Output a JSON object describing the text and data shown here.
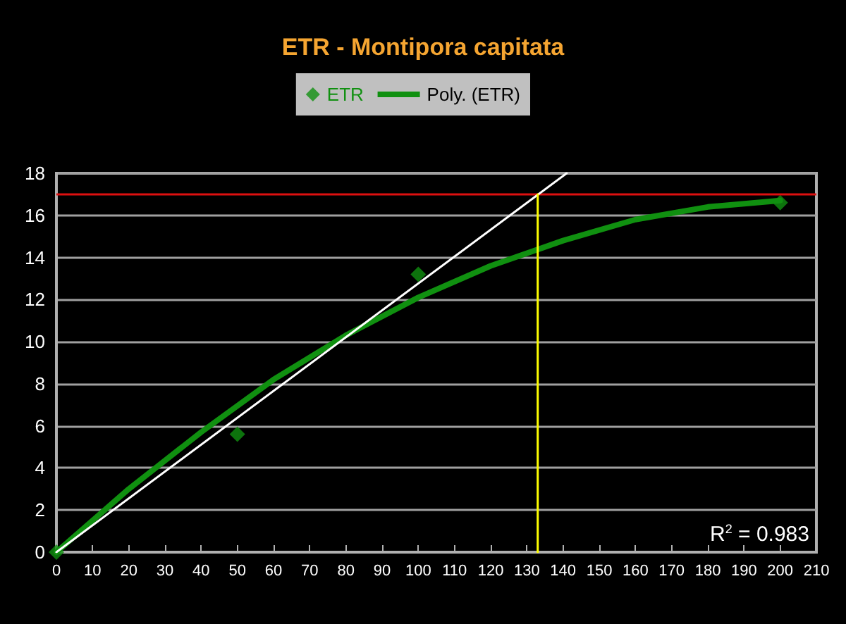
{
  "chart_data": {
    "type": "scatter",
    "title": "ETR - Montipora capitata",
    "series": [
      {
        "name": "ETR",
        "color": "#109010",
        "marker": "diamond",
        "x": [
          0,
          50,
          100,
          200
        ],
        "values": [
          0,
          5.6,
          13.2,
          16.6
        ]
      },
      {
        "name": "Poly. (ETR)",
        "type": "line",
        "color": "#109010",
        "marker": "none",
        "line_style": "solid",
        "x": [
          0,
          20,
          40,
          60,
          80,
          100,
          120,
          140,
          160,
          180,
          200
        ],
        "values": [
          0,
          3.0,
          5.7,
          8.2,
          10.3,
          12.1,
          13.6,
          14.8,
          15.8,
          16.4,
          16.7
        ]
      },
      {
        "type": "line",
        "color": "#ffffff",
        "marker": "none",
        "line_style": "solid",
        "x": [
          0,
          141
        ],
        "values": [
          0,
          18
        ]
      },
      {
        "type": "line",
        "color": "#ffff00",
        "marker": "none",
        "line_style": "solid",
        "x": [
          133,
          133
        ],
        "values": [
          0,
          17
        ]
      }
    ],
    "ref_lines": [
      {
        "axis": "y",
        "value": 17,
        "color": "#dd1010"
      }
    ],
    "annotations": [
      "R$^{2}$ = 0.983"
    ],
    "xlim": [
      0,
      210
    ],
    "xticks": [
      0,
      10,
      20,
      30,
      40,
      50,
      60,
      70,
      80,
      90,
      100,
      110,
      120,
      130,
      140,
      150,
      160,
      170,
      180,
      190,
      200,
      210
    ],
    "ylim": [
      0,
      18
    ],
    "yticks": [
      0,
      2,
      4,
      6,
      8,
      10,
      12,
      14,
      16,
      18
    ],
    "grid": "y",
    "legend": "top"
  }
}
